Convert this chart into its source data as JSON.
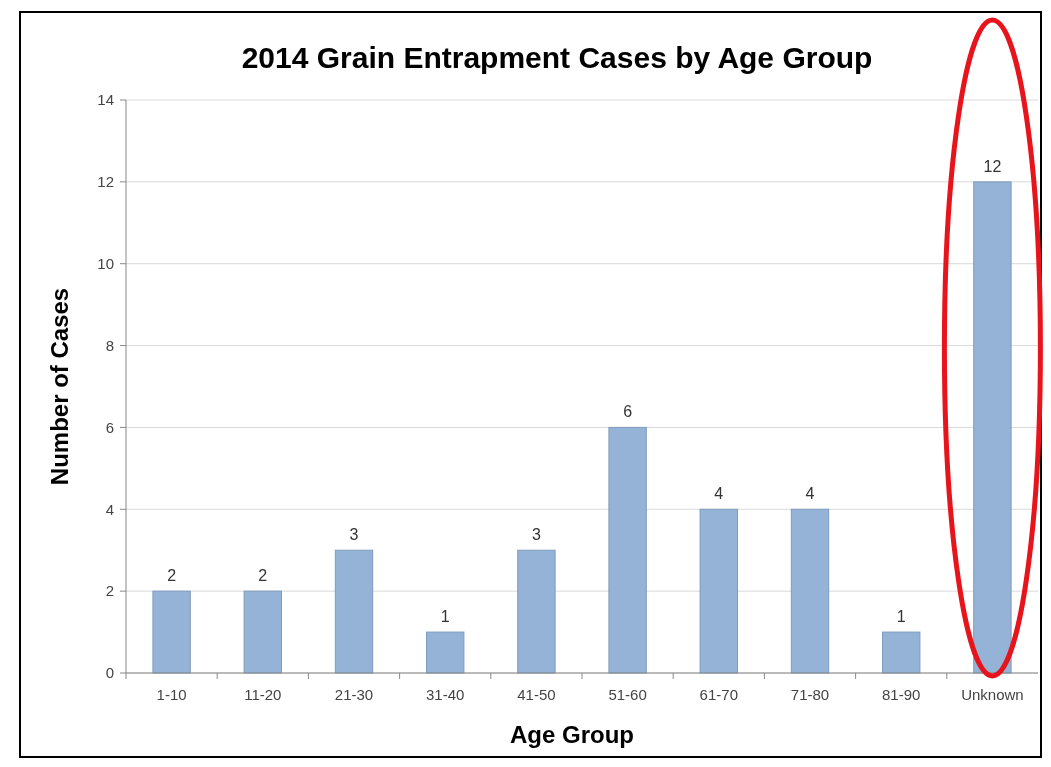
{
  "chart_data": {
    "type": "bar",
    "title": "2014 Grain Entrapment Cases by Age Group",
    "xlabel": "Age Group",
    "ylabel": "Number of Cases",
    "categories": [
      "1-10",
      "11-20",
      "21-30",
      "31-40",
      "41-50",
      "51-60",
      "61-70",
      "71-80",
      "81-90",
      "Unknown"
    ],
    "values": [
      2,
      2,
      3,
      1,
      3,
      6,
      4,
      4,
      1,
      12
    ],
    "color": "#95b3d7",
    "ylim": [
      0,
      14
    ],
    "yticks": [
      0,
      2,
      4,
      6,
      8,
      10,
      12,
      14
    ],
    "grid": "y",
    "data_labels": true
  }
}
